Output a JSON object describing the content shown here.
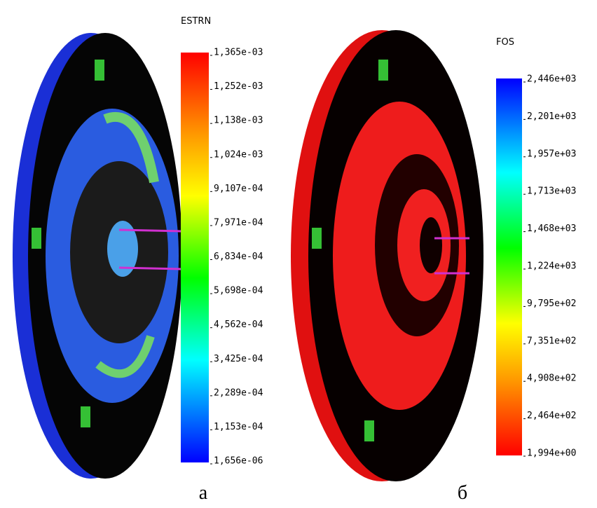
{
  "panels": [
    {
      "legend_title": "ESTRN",
      "legend_labels": [
        "1,365e-03",
        "1,252e-03",
        "1,138e-03",
        "1,024e-03",
        "9,107e-04",
        "7,971e-04",
        "6,834e-04",
        "5,698e-04",
        "4,562e-04",
        "3,425e-04",
        "2,289e-04",
        "1,153e-04",
        "1,656e-06"
      ],
      "caption": "а"
    },
    {
      "legend_title": "FOS",
      "legend_labels": [
        "2,446e+03",
        "2,201e+03",
        "1,957e+03",
        "1,713e+03",
        "1,468e+03",
        "1,224e+03",
        "9,795e+02",
        "7,351e+02",
        "4,908e+02",
        "2,464e+02",
        "1,994e+00"
      ],
      "caption": "б"
    }
  ]
}
